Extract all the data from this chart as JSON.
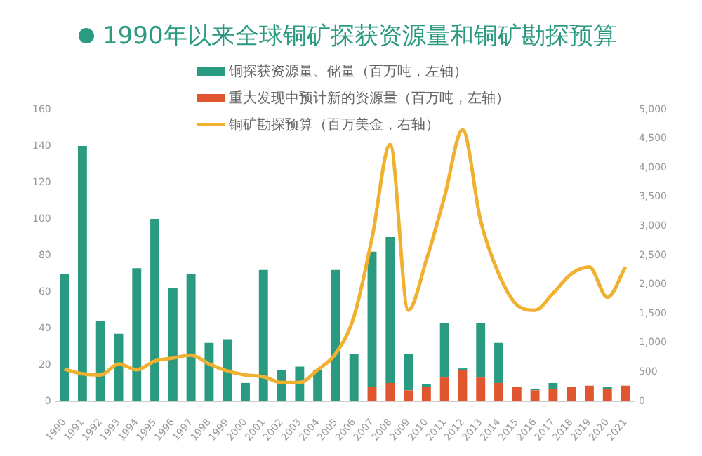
{
  "chart_data": {
    "type": "bar",
    "title": "1990年以来全球铜矿探获资源量和铜矿勘探预算",
    "stacked": true,
    "grid": false,
    "legend": "top",
    "marker": "none",
    "categories": [
      "1990",
      "1991",
      "1992",
      "1993",
      "1994",
      "1995",
      "1996",
      "1997",
      "1998",
      "1999",
      "2000",
      "2001",
      "2002",
      "2003",
      "2004",
      "2005",
      "2006",
      "2007",
      "2008",
      "2009",
      "2010",
      "2011",
      "2012",
      "2013",
      "2014",
      "2015",
      "2016",
      "2017",
      "2018",
      "2019",
      "2020",
      "2021"
    ],
    "series": [
      {
        "name": "重大发现中预计新的资源量（百万吨，左轴）",
        "color": "#e0572f",
        "values": [
          null,
          null,
          null,
          null,
          null,
          null,
          null,
          null,
          null,
          null,
          null,
          null,
          null,
          null,
          null,
          null,
          null,
          8,
          10,
          6,
          8,
          13,
          17,
          13,
          10,
          8,
          6,
          6.5,
          8,
          8.5,
          6.5,
          8.5
        ]
      },
      {
        "name": "铜探获资源量、储量（百万吨，左轴）",
        "color": "#2a9a80",
        "values": [
          70,
          140,
          44,
          37,
          73,
          100,
          62,
          70,
          32,
          34,
          10,
          72,
          17,
          19,
          17,
          72,
          26,
          74,
          80,
          20,
          1.5,
          30,
          1,
          30,
          22,
          0,
          0.5,
          3.5,
          0,
          0,
          1.5,
          0
        ]
      },
      {
        "name": "铜矿勘探预算（百万美金，右轴）",
        "color": "#f0b030",
        "type": "line",
        "axis": "y2",
        "line_style": "solid",
        "values": [
          550,
          470,
          450,
          640,
          540,
          690,
          740,
          790,
          640,
          520,
          450,
          420,
          320,
          320,
          540,
          820,
          1450,
          2800,
          4400,
          1560,
          2420,
          3500,
          4650,
          3090,
          2180,
          1650,
          1560,
          1850,
          2180,
          2300,
          1780,
          2300
        ]
      }
    ],
    "ylim": [
      0,
      160
    ],
    "yticks": [
      0,
      20,
      40,
      60,
      80,
      100,
      120,
      140,
      160
    ],
    "y2lim": [
      0,
      5000
    ],
    "y2ticks": [
      0,
      500,
      {
        "value": 1000,
        "label": "1,000"
      },
      {
        "value": 1500,
        "label": "1,500"
      },
      {
        "value": 2000,
        "label": "2,000"
      },
      {
        "value": 2500,
        "label": "2,500"
      },
      {
        "value": 3000,
        "label": "3,000"
      },
      {
        "value": 3500,
        "label": "3,500"
      },
      {
        "value": 4000,
        "label": "4,000"
      },
      {
        "value": 4500,
        "label": "4,500"
      },
      {
        "value": 5000,
        "label": "5,000"
      }
    ]
  }
}
